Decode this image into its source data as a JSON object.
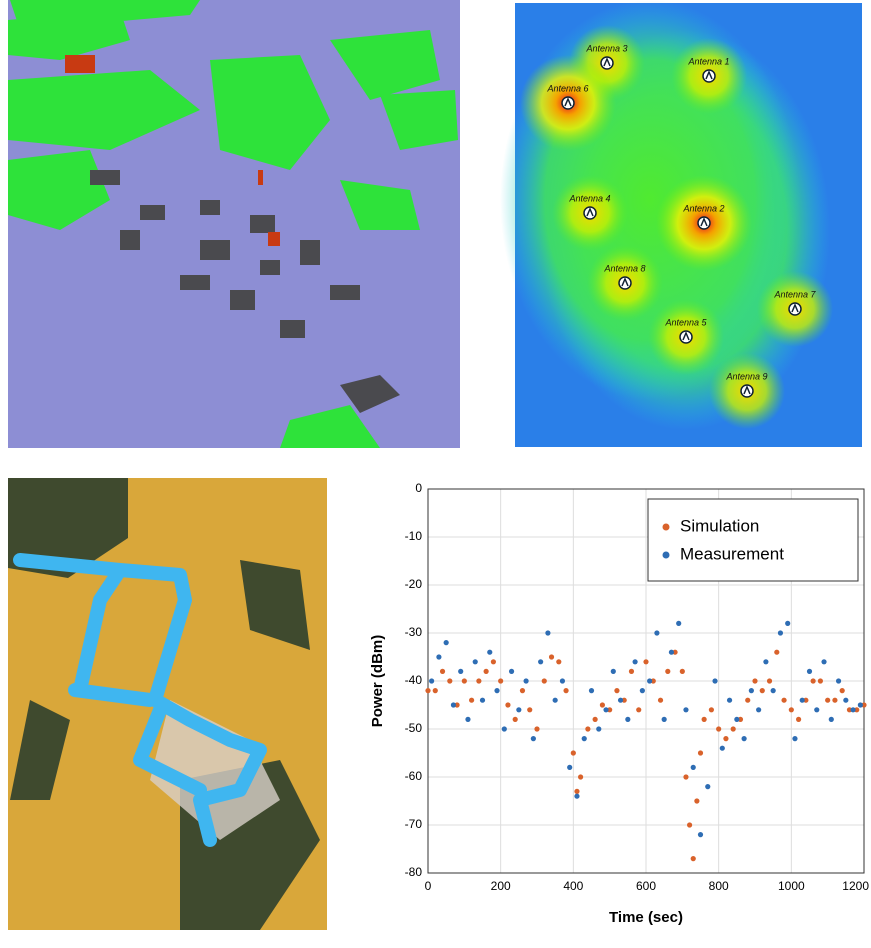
{
  "antenna_map": {
    "labels": [
      "Antenna 3",
      "Antenna 1",
      "Antenna 6",
      "Antenna 4",
      "Antenna 2",
      "Antenna 8",
      "Antenna 7",
      "Antenna 5",
      "Antenna 9"
    ]
  },
  "chart_data": {
    "type": "scatter",
    "x_label": "Time (sec)",
    "y_label": "Power (dBm)",
    "xlim": [
      0,
      1200
    ],
    "xticks": [
      0,
      200,
      400,
      600,
      800,
      1000,
      1200
    ],
    "ylim": [
      -80,
      0
    ],
    "yticks": [
      -80,
      -70,
      -60,
      -50,
      -40,
      -30,
      -20,
      -10,
      0
    ],
    "grid": true,
    "legend": "upper right",
    "series": [
      {
        "name": "Simulation",
        "color": "#d9622b",
        "x": [
          0,
          20,
          40,
          60,
          80,
          100,
          120,
          140,
          160,
          180,
          200,
          220,
          240,
          260,
          280,
          300,
          320,
          340,
          360,
          380,
          400,
          410,
          420,
          440,
          460,
          480,
          500,
          520,
          540,
          560,
          580,
          600,
          620,
          640,
          660,
          680,
          700,
          710,
          720,
          730,
          740,
          750,
          760,
          780,
          800,
          820,
          840,
          860,
          880,
          900,
          920,
          940,
          960,
          980,
          1000,
          1020,
          1040,
          1060,
          1080,
          1100,
          1120,
          1140,
          1160,
          1180,
          1200
        ],
        "y": [
          -42,
          -42,
          -38,
          -40,
          -45,
          -40,
          -44,
          -40,
          -38,
          -36,
          -40,
          -45,
          -48,
          -42,
          -46,
          -50,
          -40,
          -35,
          -36,
          -42,
          -55,
          -63,
          -60,
          -50,
          -48,
          -45,
          -46,
          -42,
          -44,
          -38,
          -46,
          -36,
          -40,
          -44,
          -38,
          -34,
          -38,
          -60,
          -70,
          -77,
          -65,
          -55,
          -48,
          -46,
          -50,
          -52,
          -50,
          -48,
          -44,
          -40,
          -42,
          -40,
          -34,
          -44,
          -46,
          -48,
          -44,
          -40,
          -40,
          -44,
          -44,
          -42,
          -46,
          -46,
          -45
        ]
      },
      {
        "name": "Measurement",
        "color": "#2e6db4",
        "x": [
          10,
          30,
          50,
          70,
          90,
          110,
          130,
          150,
          170,
          190,
          210,
          230,
          250,
          270,
          290,
          310,
          330,
          350,
          370,
          390,
          410,
          430,
          450,
          470,
          490,
          510,
          530,
          550,
          570,
          590,
          610,
          630,
          650,
          670,
          690,
          710,
          730,
          750,
          770,
          790,
          810,
          830,
          850,
          870,
          890,
          910,
          930,
          950,
          970,
          990,
          1010,
          1030,
          1050,
          1070,
          1090,
          1110,
          1130,
          1150,
          1170,
          1190
        ],
        "y": [
          -40,
          -35,
          -32,
          -45,
          -38,
          -48,
          -36,
          -44,
          -34,
          -42,
          -50,
          -38,
          -46,
          -40,
          -52,
          -36,
          -30,
          -44,
          -40,
          -58,
          -64,
          -52,
          -42,
          -50,
          -46,
          -38,
          -44,
          -48,
          -36,
          -42,
          -40,
          -30,
          -48,
          -34,
          -28,
          -46,
          -58,
          -72,
          -62,
          -40,
          -54,
          -44,
          -48,
          -52,
          -42,
          -46,
          -36,
          -42,
          -30,
          -28,
          -52,
          -44,
          -38,
          -46,
          -36,
          -48,
          -40,
          -44,
          -46,
          -45
        ]
      }
    ]
  }
}
